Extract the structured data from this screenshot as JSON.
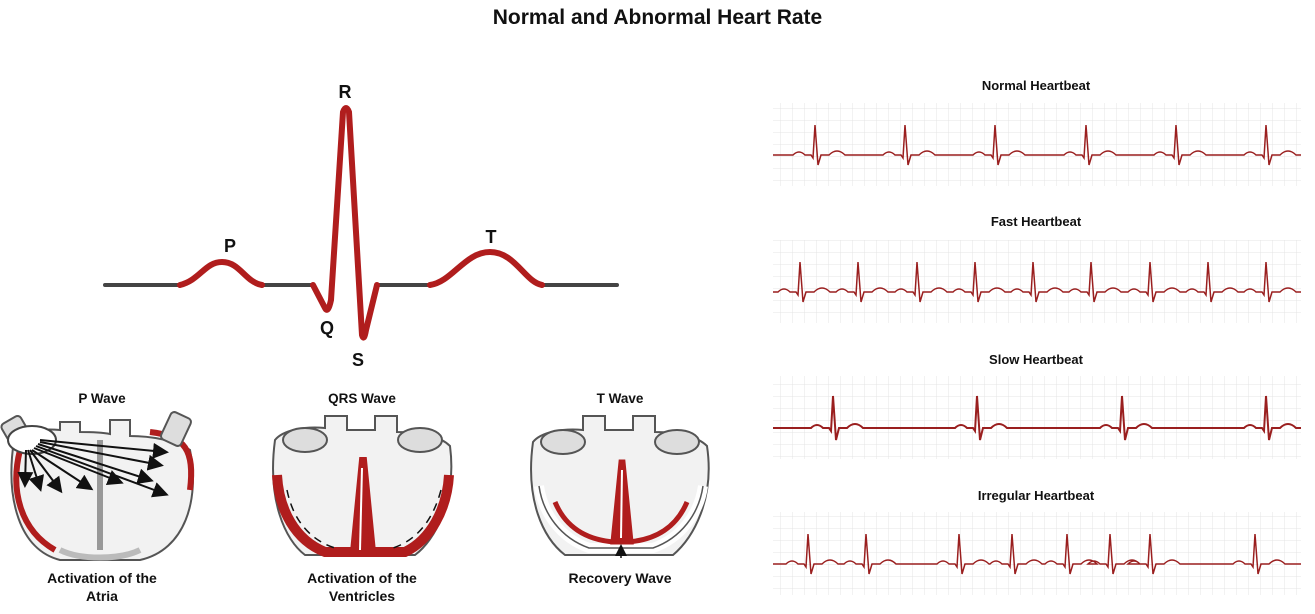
{
  "title": "Normal and Abnormal Heart Rate",
  "ecg_wave": {
    "labels": {
      "p": "P",
      "q": "Q",
      "r": "R",
      "s": "S",
      "t": "T"
    },
    "colors": {
      "baseline": "#444444",
      "wave": "#b01d1d"
    }
  },
  "heart_panels": [
    {
      "title": "P Wave",
      "caption_line1": "Activation of the",
      "caption_line2": "Atria"
    },
    {
      "title": "QRS Wave",
      "caption_line1": "Activation of the",
      "caption_line2": "Ventricles"
    },
    {
      "title": "T Wave",
      "caption_line1": "Recovery Wave",
      "caption_line2": ""
    }
  ],
  "rhythm_strips": [
    {
      "title": "Normal Heartbeat",
      "beats": 6
    },
    {
      "title": "Fast Heartbeat",
      "beats": 9
    },
    {
      "title": "Slow Heartbeat",
      "beats": 4
    },
    {
      "title": "Irregular Heartbeat",
      "beats": 8
    }
  ],
  "colors": {
    "grid": "#e2e2e2",
    "trace": "#9a1f1f",
    "heart_wall": "#b01d1d",
    "heart_fill": "#f2f2f2",
    "heart_outline": "#555555"
  }
}
